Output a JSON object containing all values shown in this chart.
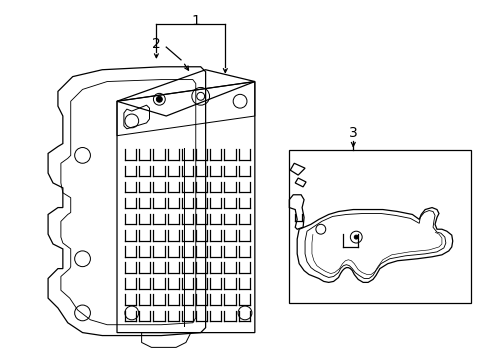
{
  "background_color": "#ffffff",
  "line_color": "#000000",
  "label1": "1",
  "label2": "2",
  "label3": "3",
  "figsize": [
    4.9,
    3.6
  ],
  "dpi": 100
}
